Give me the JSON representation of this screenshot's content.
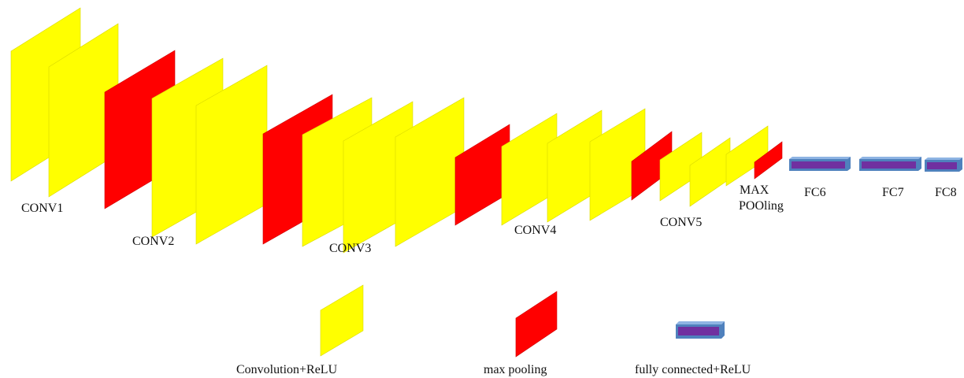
{
  "colors": {
    "convolution": "#ffff00",
    "pooling": "#ff0000",
    "fc_front": "#7030a0",
    "fc_face": "#4f81bd",
    "fc_top": "#8eb4e3"
  },
  "stages": {
    "conv1": "CONV1",
    "conv2": "CONV2",
    "conv3": "CONV3",
    "conv4": "CONV4",
    "conv5": "CONV5",
    "max_pool_line1": "MAX",
    "max_pool_line2": "POOling",
    "fc6": "FC6",
    "fc7": "FC7",
    "fc8": "FC8"
  },
  "legend": {
    "convolution": "Convolution+ReLU",
    "pooling": "max pooling",
    "fully_connected": "fully connected+ReLU"
  }
}
